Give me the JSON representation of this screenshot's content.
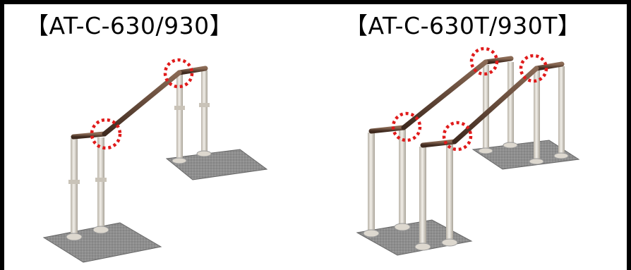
{
  "panels": {
    "left": {
      "label": "【AT-C-630/930】"
    },
    "right": {
      "label": "【AT-C-630T/930T】"
    }
  },
  "colors": {
    "frame": "#000000",
    "handrail": "#5a3a2a",
    "post": "#d8d4cc",
    "base_plate": "#8a8a8a",
    "highlight_circle": "#e01b1b"
  },
  "icons": [
    "handrail-unit-single",
    "handrail-unit-double",
    "joint-highlight-circle"
  ]
}
